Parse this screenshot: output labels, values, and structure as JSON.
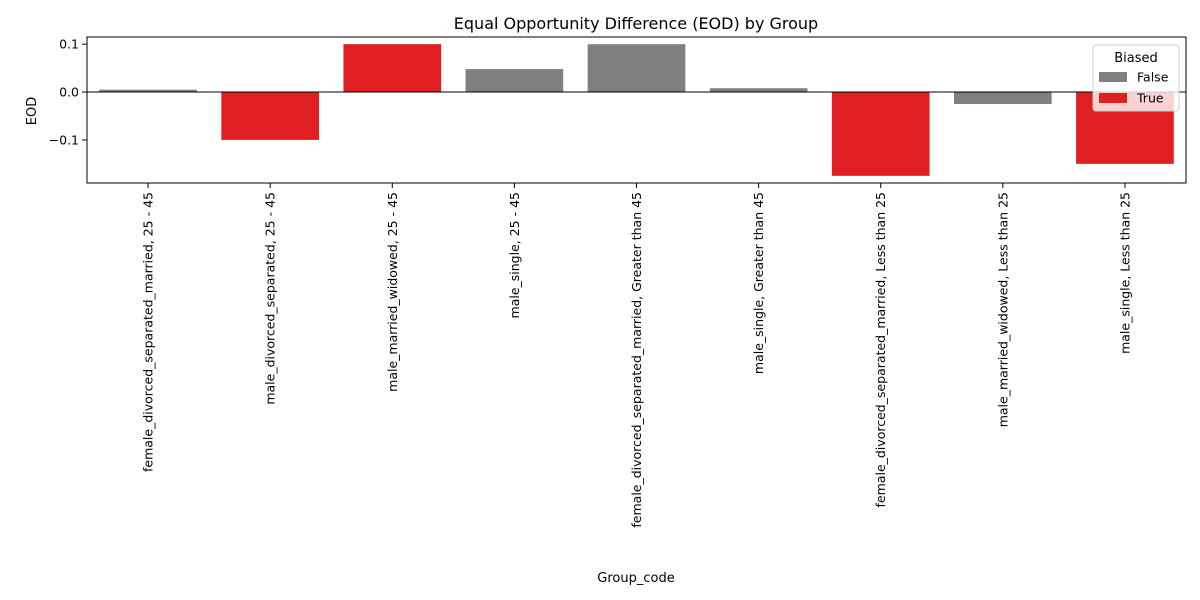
{
  "chart_data": {
    "type": "bar",
    "title": "Equal Opportunity Difference (EOD) by Group",
    "xlabel": "Group_code",
    "ylabel": "EOD",
    "ylim": [
      -0.19,
      0.115
    ],
    "yticks": [
      -0.1,
      0.0,
      0.1
    ],
    "ytick_labels": [
      "−0.1",
      "0.0",
      "0.1"
    ],
    "categories": [
      "female_divorced_separated_married, 25 - 45",
      "male_divorced_separated, 25 - 45",
      "male_married_widowed, 25 - 45",
      "male_single, 25 - 45",
      "female_divorced_separated_married, Greater than 45",
      "male_single, Greater than 45",
      "female_divorced_separated_married, Less than 25",
      "male_married_widowed, Less than 25",
      "male_single, Less than 25"
    ],
    "values": [
      0.005,
      -0.1,
      0.1,
      0.048,
      0.1,
      0.008,
      -0.175,
      -0.025,
      -0.15
    ],
    "biased": [
      false,
      true,
      true,
      false,
      false,
      false,
      true,
      false,
      true
    ],
    "colors": {
      "False": "#808080",
      "True": "#e11f22"
    },
    "legend": {
      "title": "Biased",
      "placement": "top-right",
      "entries": [
        {
          "label": "False",
          "key": "False"
        },
        {
          "label": "True",
          "key": "True"
        }
      ]
    },
    "grid": false
  }
}
